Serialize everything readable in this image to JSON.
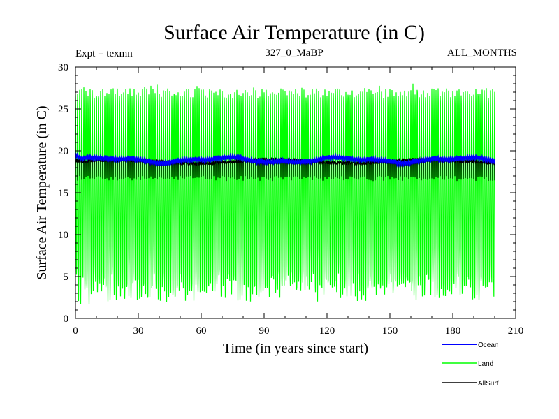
{
  "chart_data": {
    "type": "line",
    "title": "Surface Air Temperature (in C)",
    "subtitle_left": "Expt = texmn",
    "subtitle_center": "327_0_MaBP",
    "subtitle_right": "ALL_MONTHS",
    "xlabel": "Time (in years since start)",
    "ylabel": "Surface Air Temperature (in C)",
    "xlim": [
      0,
      210
    ],
    "ylim": [
      0,
      30
    ],
    "x_ticks": [
      0,
      30,
      60,
      90,
      120,
      150,
      180,
      210
    ],
    "y_ticks": [
      0,
      5,
      10,
      15,
      20,
      25,
      30
    ],
    "x_tick_labels": [
      "0",
      "30",
      "60",
      "90",
      "120",
      "150",
      "180",
      "210"
    ],
    "y_tick_labels": [
      "0",
      "5",
      "10",
      "15",
      "20",
      "25",
      "30"
    ],
    "data_x_range": [
      0,
      200
    ],
    "samples_per_year": 12,
    "series": [
      {
        "name": "Ocean",
        "color": "#0000ff",
        "mean": 18.9,
        "seasonal_min": 18.4,
        "seasonal_max": 19.6,
        "low_frequency_range": [
          18.5,
          19.4
        ]
      },
      {
        "name": "Land",
        "color": "#00ff00",
        "seasonal_min": 0.4,
        "seasonal_max": 28.5,
        "typical_min": 2.0,
        "typical_max": 27.5
      },
      {
        "name": "AllSurf",
        "color": "#000000",
        "seasonal_min": 16.5,
        "seasonal_max": 19.5,
        "typical_min": 17.0,
        "typical_max": 19.3
      }
    ],
    "legend": [
      {
        "label": "Ocean",
        "color": "#0000ff"
      },
      {
        "label": "Land",
        "color": "#00ff00"
      },
      {
        "label": "AllSurf",
        "color": "#000000"
      }
    ],
    "legend_position": "bottom-right",
    "grid": false
  }
}
